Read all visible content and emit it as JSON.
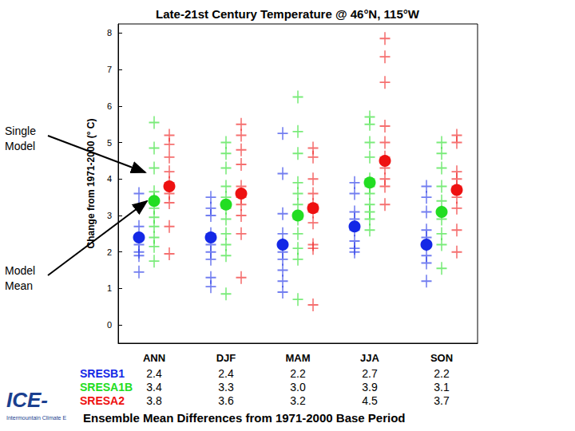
{
  "chart_data": {
    "type": "scatter",
    "title": "Late-21st Century Temperature @ 46°N, 115°W",
    "y_label": "Change from 1971-2000 (° C)",
    "categories": [
      "ANN",
      "DJF",
      "MAM",
      "JJA",
      "SON"
    ],
    "ylim": [
      -0.5,
      8.25
    ],
    "yticks": [
      0,
      1,
      2,
      3,
      4,
      5,
      6,
      7,
      8
    ],
    "grid": false,
    "annotations": [
      {
        "text": "Single Model"
      },
      {
        "text": "Model Mean"
      }
    ],
    "caption": "Ensemble Mean Differences from 1971-2000 Base Period",
    "logo": {
      "text": "ICE-",
      "subtext": "Intermountain Climate E"
    },
    "series": [
      {
        "name": "SRESB1",
        "color": "#1428e6",
        "marker": "circle",
        "values": [
          2.4,
          2.4,
          2.2,
          2.7,
          2.2
        ],
        "value_labels": [
          "2.4",
          "2.4",
          "2.2",
          "2.7",
          "2.2"
        ],
        "models": [
          [
            3.6,
            3.25,
            2.7,
            2.2,
            2.0,
            1.9,
            1.45
          ],
          [
            3.5,
            3.2,
            3.0,
            2.5,
            2.2,
            2.0,
            1.8,
            1.3,
            1.05
          ],
          [
            5.25,
            4.15,
            3.05,
            2.5,
            2.2,
            2.0,
            1.8,
            1.5,
            1.2,
            0.9
          ],
          [
            3.9,
            3.6,
            3.1,
            2.9,
            2.6,
            2.3,
            2.1,
            2.0
          ],
          [
            3.8,
            3.5,
            3.1,
            2.6,
            2.4,
            2.2,
            1.9,
            1.7,
            1.2
          ]
        ]
      },
      {
        "name": "SRESA1B",
        "color": "#22dd22",
        "marker": "circle",
        "values": [
          3.4,
          3.3,
          3.0,
          3.9,
          3.1
        ],
        "value_labels": [
          "3.4",
          "3.3",
          "3.0",
          "3.9",
          "3.1"
        ],
        "models": [
          [
            5.55,
            4.85,
            4.3,
            3.65,
            3.45,
            3.2,
            2.95,
            2.7,
            2.4,
            2.15,
            1.75
          ],
          [
            5.0,
            4.7,
            4.3,
            3.8,
            3.5,
            3.2,
            2.9,
            2.5,
            2.2,
            1.9,
            0.85
          ],
          [
            6.25,
            5.3,
            4.7,
            3.9,
            3.6,
            3.3,
            2.9,
            2.5,
            2.1,
            1.8,
            0.7
          ],
          [
            5.7,
            5.5,
            5.0,
            4.6,
            4.0,
            3.8,
            3.6,
            3.3,
            3.1,
            2.9,
            2.6
          ],
          [
            5.0,
            4.7,
            4.3,
            3.8,
            3.4,
            3.1,
            2.9,
            2.5,
            2.2,
            1.55
          ]
        ]
      },
      {
        "name": "SRESA2",
        "color": "#ee1111",
        "marker": "circle",
        "values": [
          3.8,
          3.6,
          3.2,
          4.5,
          3.7
        ],
        "value_labels": [
          "3.8",
          "3.6",
          "3.2",
          "4.5",
          "3.7"
        ],
        "models": [
          [
            5.2,
            4.95,
            4.6,
            4.2,
            3.9,
            3.6,
            3.35,
            2.7,
            1.95
          ],
          [
            5.5,
            5.2,
            4.8,
            4.4,
            3.8,
            3.5,
            3.3,
            3.0,
            2.5,
            1.3
          ],
          [
            4.85,
            4.6,
            4.0,
            3.6,
            3.3,
            3.1,
            2.8,
            2.2,
            2.1,
            0.55
          ],
          [
            7.85,
            7.35,
            6.65,
            5.45,
            5.0,
            4.6,
            4.3,
            4.0,
            3.8,
            3.3
          ],
          [
            5.2,
            5.0,
            4.2,
            4.0,
            3.8,
            3.5,
            3.2,
            2.6,
            2.0
          ]
        ]
      }
    ]
  }
}
